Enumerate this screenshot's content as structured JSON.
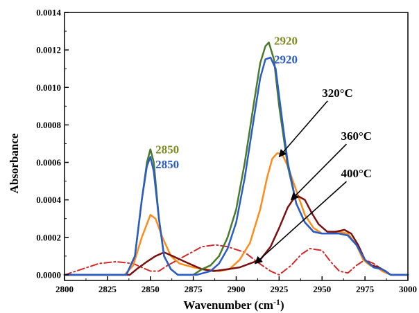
{
  "chart_data": {
    "type": "line",
    "xlabel": "Wavenumber (cm",
    "xlabel_sup": "-1",
    "xlabel_close": ")",
    "ylabel": "Absorbance",
    "xlim": [
      2800,
      3000
    ],
    "ylim": [
      -3e-05,
      0.0014
    ],
    "x_ticks": [
      2800,
      2825,
      2850,
      2875,
      2900,
      2925,
      2950,
      2975,
      3000
    ],
    "x_tick_labels": [
      "2800",
      "2825",
      "2850",
      "2875",
      "2900",
      "2925",
      "2950",
      "2975",
      "3000"
    ],
    "y_ticks": [
      0.0,
      0.0002,
      0.0004,
      0.0006,
      0.0008,
      0.001,
      0.0012,
      0.0014
    ],
    "y_tick_labels": [
      "0.0000",
      "0.0002",
      "0.0004",
      "0.0006",
      "0.0008",
      "0.0010",
      "0.0012",
      "0.0014"
    ],
    "legend": "none",
    "grid": false,
    "series": [
      {
        "color": "#d62728",
        "dash": true,
        "width": 2,
        "points": [
          [
            2800,
            0
          ],
          [
            2810,
            3e-05
          ],
          [
            2820,
            6e-05
          ],
          [
            2830,
            7e-05
          ],
          [
            2840,
            6e-05
          ],
          [
            2845,
            4e-05
          ],
          [
            2850,
            2e-05
          ],
          [
            2855,
            2e-05
          ],
          [
            2860,
            5e-05
          ],
          [
            2870,
            0.0001
          ],
          [
            2880,
            0.00015
          ],
          [
            2888,
            0.00016
          ],
          [
            2895,
            0.00015
          ],
          [
            2905,
            0.00012
          ],
          [
            2912,
            7e-05
          ],
          [
            2920,
            2e-05
          ],
          [
            2925,
            0
          ],
          [
            2932,
            5e-05
          ],
          [
            2938,
            0.00011
          ],
          [
            2943,
            0.00014
          ],
          [
            2950,
            0.00013
          ],
          [
            2955,
            7e-05
          ],
          [
            2960,
            2e-05
          ],
          [
            2965,
            1e-05
          ],
          [
            2970,
            5e-05
          ],
          [
            2975,
            8e-05
          ],
          [
            2980,
            6e-05
          ],
          [
            2985,
            3e-05
          ],
          [
            2990,
            0
          ],
          [
            3000,
            0
          ]
        ]
      },
      {
        "color": "#ff8c1a",
        "dash": false,
        "width": 2.5,
        "points": [
          [
            2800,
            0
          ],
          [
            2835,
            0
          ],
          [
            2840,
            5e-05
          ],
          [
            2845,
            0.0002
          ],
          [
            2850,
            0.00032
          ],
          [
            2853,
            0.0003
          ],
          [
            2857,
            0.0002
          ],
          [
            2862,
            0.0001
          ],
          [
            2867,
            6e-05
          ],
          [
            2875,
            4e-05
          ],
          [
            2882,
            3e-05
          ],
          [
            2890,
            2e-05
          ],
          [
            2896,
            3e-05
          ],
          [
            2902,
            8e-05
          ],
          [
            2908,
            0.00017
          ],
          [
            2914,
            0.00035
          ],
          [
            2918,
            0.00052
          ],
          [
            2921,
            0.00062
          ],
          [
            2924,
            0.00065
          ],
          [
            2927,
            0.00064
          ],
          [
            2930,
            0.00058
          ],
          [
            2935,
            0.00045
          ],
          [
            2940,
            0.00032
          ],
          [
            2945,
            0.00025
          ],
          [
            2950,
            0.00022
          ],
          [
            2955,
            0.00022
          ],
          [
            2960,
            0.00023
          ],
          [
            2965,
            0.00022
          ],
          [
            2970,
            0.00016
          ],
          [
            2974,
            8e-05
          ],
          [
            2978,
            5e-05
          ],
          [
            2982,
            4e-05
          ],
          [
            2985,
            2e-05
          ],
          [
            2990,
            0
          ],
          [
            3000,
            0
          ]
        ]
      },
      {
        "color": "#7a1010",
        "dash": false,
        "width": 2.5,
        "points": [
          [
            2800,
            0
          ],
          [
            2838,
            0
          ],
          [
            2842,
            3e-05
          ],
          [
            2848,
            7e-05
          ],
          [
            2853,
            0.0001
          ],
          [
            2858,
            0.00012
          ],
          [
            2863,
            0.0001
          ],
          [
            2870,
            7e-05
          ],
          [
            2875,
            5e-05
          ],
          [
            2880,
            3e-05
          ],
          [
            2887,
            2e-05
          ],
          [
            2895,
            3e-05
          ],
          [
            2902,
            4e-05
          ],
          [
            2908,
            6e-05
          ],
          [
            2914,
            8e-05
          ],
          [
            2920,
            0.00015
          ],
          [
            2925,
            0.00025
          ],
          [
            2930,
            0.00036
          ],
          [
            2933,
            0.0004
          ],
          [
            2936,
            0.00042
          ],
          [
            2940,
            0.0004
          ],
          [
            2944,
            0.00033
          ],
          [
            2948,
            0.00027
          ],
          [
            2953,
            0.00023
          ],
          [
            2958,
            0.00023
          ],
          [
            2963,
            0.00024
          ],
          [
            2967,
            0.00022
          ],
          [
            2971,
            0.00016
          ],
          [
            2975,
            8e-05
          ],
          [
            2979,
            5e-05
          ],
          [
            2983,
            4e-05
          ],
          [
            2987,
            2e-05
          ],
          [
            2990,
            0
          ],
          [
            3000,
            0
          ]
        ]
      },
      {
        "color": "#4a7a2a",
        "dash": false,
        "width": 2.5,
        "points": [
          [
            2800,
            0
          ],
          [
            2836,
            0
          ],
          [
            2841,
            0.0001
          ],
          [
            2845,
            0.0004
          ],
          [
            2848,
            0.0006
          ],
          [
            2850,
            0.00067
          ],
          [
            2852,
            0.0006
          ],
          [
            2855,
            0.0003
          ],
          [
            2858,
            0.0001
          ],
          [
            2862,
            3e-05
          ],
          [
            2866,
            0
          ],
          [
            2875,
            0
          ],
          [
            2880,
            3e-05
          ],
          [
            2885,
            5e-05
          ],
          [
            2890,
            0.0001
          ],
          [
            2895,
            0.0002
          ],
          [
            2900,
            0.00035
          ],
          [
            2905,
            0.0006
          ],
          [
            2910,
            0.0009
          ],
          [
            2914,
            0.00113
          ],
          [
            2917,
            0.00122
          ],
          [
            2919,
            0.00124
          ],
          [
            2922,
            0.00115
          ],
          [
            2925,
            0.0009
          ],
          [
            2930,
            0.00058
          ],
          [
            2935,
            0.00038
          ],
          [
            2940,
            0.00028
          ],
          [
            2945,
            0.00023
          ],
          [
            2950,
            0.00022
          ],
          [
            2955,
            0.00022
          ],
          [
            2960,
            0.00022
          ],
          [
            2965,
            0.00021
          ],
          [
            2970,
            0.00016
          ],
          [
            2975,
            8e-05
          ],
          [
            2980,
            4e-05
          ],
          [
            2985,
            3e-05
          ],
          [
            2990,
            0
          ],
          [
            3000,
            0
          ]
        ]
      },
      {
        "color": "#2a5cc8",
        "dash": false,
        "width": 2.5,
        "points": [
          [
            2800,
            0
          ],
          [
            2836,
            0
          ],
          [
            2841,
            0.0001
          ],
          [
            2845,
            0.0004
          ],
          [
            2848,
            0.00058
          ],
          [
            2850,
            0.00063
          ],
          [
            2852,
            0.00055
          ],
          [
            2855,
            0.0003
          ],
          [
            2858,
            0.0001
          ],
          [
            2862,
            3e-05
          ],
          [
            2866,
            0
          ],
          [
            2877,
            0
          ],
          [
            2885,
            2e-05
          ],
          [
            2890,
            6e-05
          ],
          [
            2895,
            0.00014
          ],
          [
            2900,
            0.00028
          ],
          [
            2905,
            0.00052
          ],
          [
            2910,
            0.00082
          ],
          [
            2914,
            0.00105
          ],
          [
            2917,
            0.00115
          ],
          [
            2920,
            0.00116
          ],
          [
            2923,
            0.0011
          ],
          [
            2926,
            0.00088
          ],
          [
            2930,
            0.0006
          ],
          [
            2935,
            0.00038
          ],
          [
            2940,
            0.00028
          ],
          [
            2945,
            0.00023
          ],
          [
            2950,
            0.00022
          ],
          [
            2955,
            0.00022
          ],
          [
            2960,
            0.00022
          ],
          [
            2965,
            0.00021
          ],
          [
            2970,
            0.00016
          ],
          [
            2975,
            8e-05
          ],
          [
            2980,
            4e-05
          ],
          [
            2985,
            3e-05
          ],
          [
            2990,
            0
          ],
          [
            3000,
            0
          ]
        ]
      }
    ],
    "peak_labels": [
      {
        "text": "2920",
        "color": "#7f8a1f",
        "x": 2922,
        "y": 0.00125
      },
      {
        "text": "2920",
        "color": "#2a5cc8",
        "x": 2922,
        "y": 0.00115
      },
      {
        "text": "2850",
        "color": "#7f8a1f",
        "x": 2853,
        "y": 0.00067
      },
      {
        "text": "2850",
        "color": "#2a5cc8",
        "x": 2853,
        "y": 0.00059
      }
    ],
    "annotations": [
      {
        "text": "320°C",
        "x": 2950,
        "y": 0.00095,
        "arrow_to": [
          2925,
          0.00063
        ]
      },
      {
        "text": "360°C",
        "x": 2961,
        "y": 0.00072,
        "arrow_to": [
          2932,
          0.0004
        ]
      },
      {
        "text": "400°C",
        "x": 2961,
        "y": 0.00052,
        "arrow_to": [
          2911,
          6e-05
        ]
      }
    ]
  }
}
